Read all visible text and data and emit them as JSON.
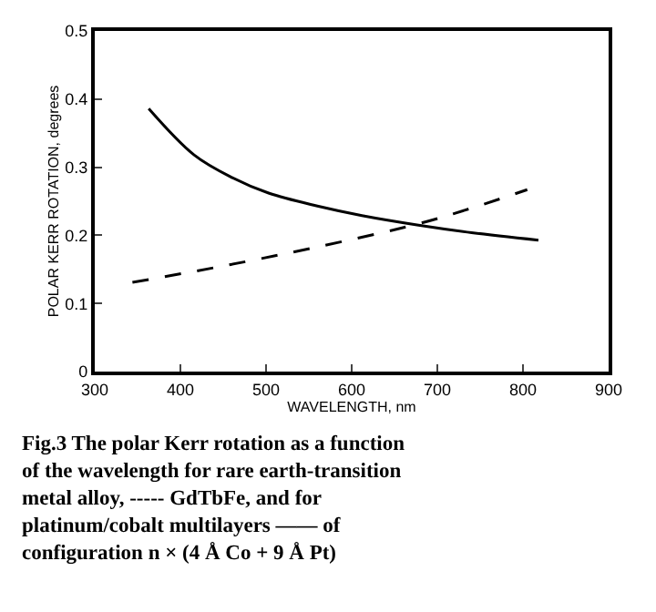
{
  "chart_data": {
    "type": "line",
    "xlabel": "WAVELENGTH, nm",
    "ylabel": "POLAR KERR ROTATION, degrees",
    "xlim": [
      300,
      900
    ],
    "xticks": [
      300,
      400,
      500,
      600,
      700,
      800,
      900
    ],
    "ylim": [
      0,
      0.5
    ],
    "yticks": [
      {
        "value": 0,
        "label": "0"
      },
      {
        "value": 0.1,
        "label": "0.1"
      },
      {
        "value": 0.2,
        "label": "0.2"
      },
      {
        "value": 0.3,
        "label": "0.3"
      },
      {
        "value": 0.4,
        "label": "0.4"
      },
      {
        "value": 0.5,
        "label": "0.5"
      }
    ],
    "marker": "none",
    "series": [
      {
        "color": "#000000",
        "line_style": "solid",
        "x": [
          363,
          416,
          460,
          503,
          560,
          612,
          678,
          740,
          818
        ],
        "values": [
          0.386,
          0.318,
          0.285,
          0.262,
          0.243,
          0.229,
          0.215,
          0.204,
          0.193
        ]
      },
      {
        "color": "#000000",
        "line_style": "dashed",
        "x": [
          344,
          450,
          560,
          678,
          740,
          805
        ],
        "values": [
          0.131,
          0.155,
          0.183,
          0.217,
          0.24,
          0.267
        ]
      }
    ],
    "annotations": [
      "Fig.3 The polar Kerr rotation as a function of the wavelength for rare earth-transition metal alloy, ----- GdTbFe, and for platinum/cobalt multilayers —— of configuration n × (4 Å Co + 9 Å Pt)"
    ]
  }
}
